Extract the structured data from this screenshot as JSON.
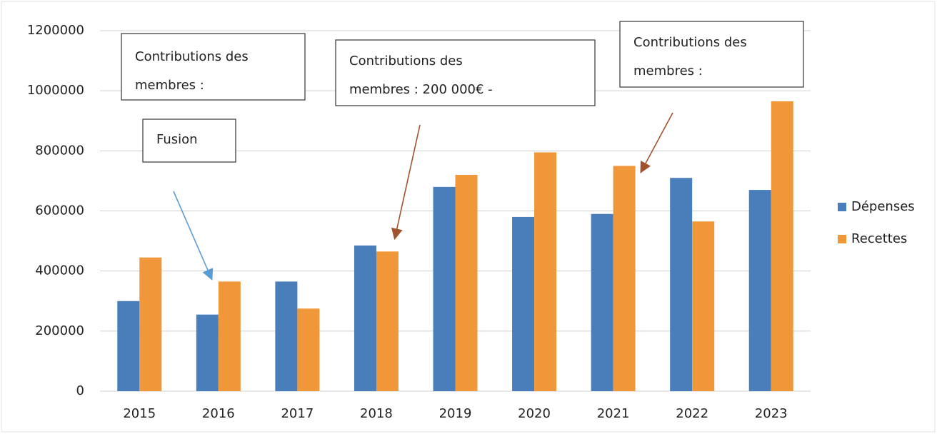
{
  "chart_data": {
    "type": "bar",
    "categories": [
      "2015",
      "2016",
      "2017",
      "2018",
      "2019",
      "2020",
      "2021",
      "2022",
      "2023"
    ],
    "series": [
      {
        "name": "Dépenses",
        "color": "#4a7ebb",
        "values": [
          300000,
          255000,
          365000,
          485000,
          680000,
          580000,
          590000,
          710000,
          670000
        ]
      },
      {
        "name": "Recettes",
        "color": "#f0973a",
        "values": [
          445000,
          365000,
          275000,
          465000,
          720000,
          795000,
          750000,
          565000,
          965000
        ]
      }
    ],
    "ylim": [
      0,
      1200000
    ],
    "yticks": [
      0,
      200000,
      400000,
      600000,
      800000,
      1000000,
      1200000
    ],
    "grid": true,
    "legend": "right",
    "annotations": [
      {
        "lines": [
          "Contributions des",
          "membres :"
        ]
      },
      {
        "lines": [
          "Fusion"
        ]
      },
      {
        "lines": [
          "Contributions des",
          "membres : 200 000€ -"
        ]
      },
      {
        "lines": [
          "Contributions des",
          "membres :"
        ]
      }
    ]
  }
}
